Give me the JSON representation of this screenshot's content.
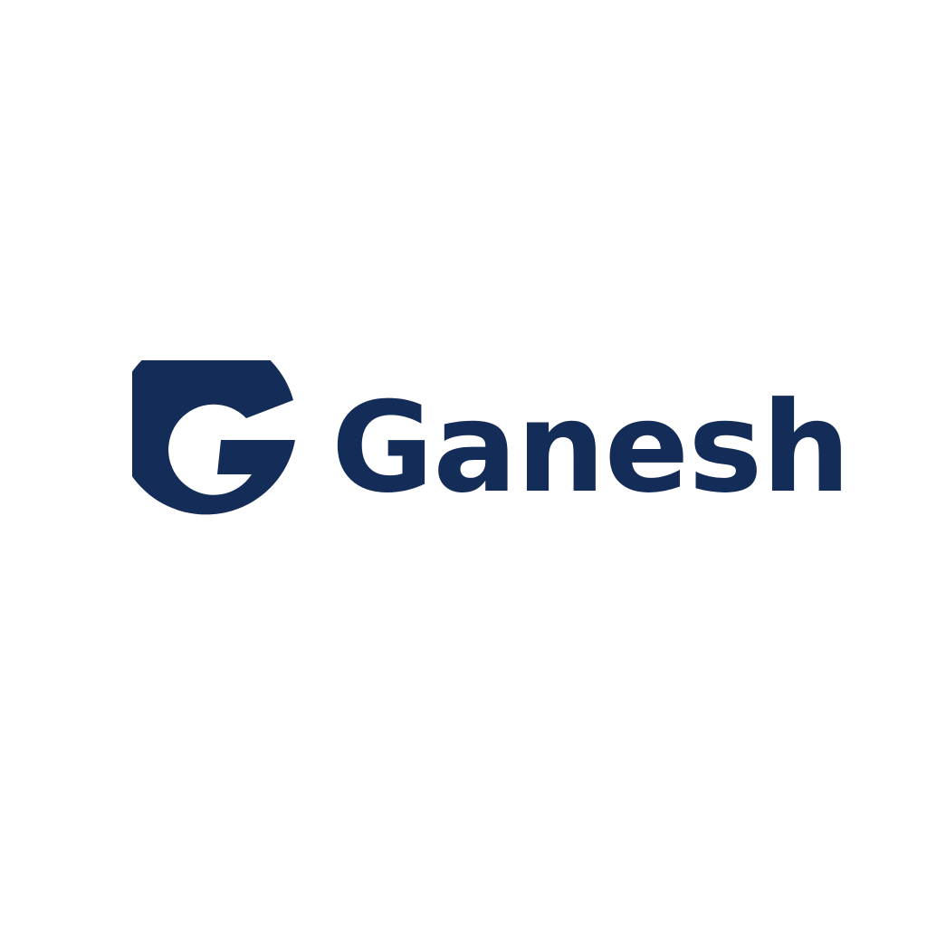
{
  "brand": {
    "name": "Ganesh",
    "color": "#142c58",
    "logo_icon": "g-monogram-icon"
  }
}
